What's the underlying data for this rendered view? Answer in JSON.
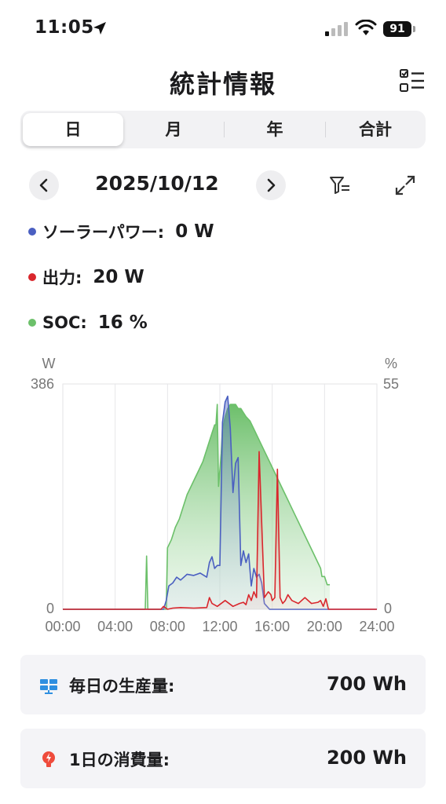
{
  "status_bar": {
    "time": "11:05",
    "battery": "91"
  },
  "header": {
    "title": "統計情報"
  },
  "tabs": [
    {
      "label": "日",
      "active": true
    },
    {
      "label": "月",
      "active": false
    },
    {
      "label": "年",
      "active": false
    },
    {
      "label": "合計",
      "active": false
    }
  ],
  "date_nav": {
    "date": "2025/10/12"
  },
  "legend": [
    {
      "label": "ソーラーパワー:",
      "value": "0 W",
      "color": "#4a5fc1"
    },
    {
      "label": "出力:",
      "value": "20 W",
      "color": "#d9262c"
    },
    {
      "label": "SOC:",
      "value": "16 %",
      "color": "#6cc06a"
    }
  ],
  "chart_data": {
    "type": "area",
    "left_axis_unit": "W",
    "right_axis_unit": "%",
    "left_ylim": [
      0,
      386
    ],
    "right_ylim": [
      0,
      55
    ],
    "left_tick_labels": [
      "386",
      "0"
    ],
    "right_tick_labels": [
      "55",
      "0"
    ],
    "x_tick_labels": [
      "00:00",
      "04:00",
      "08:00",
      "12:00",
      "16:00",
      "20:00",
      "24:00"
    ],
    "xlim_hours": [
      0,
      24
    ],
    "colors": {
      "solar": "#4a5fc1",
      "output": "#d9262c",
      "soc": "#6cc06a"
    },
    "series": [
      {
        "axis": "right",
        "x": [
          0,
          6.2,
          6.3,
          6.4,
          6.5,
          6.6,
          6.7,
          6.8,
          6.9,
          7.0,
          7.1,
          7.2,
          7.3,
          7.4,
          7.5,
          7.6,
          7.7,
          7.8,
          7.9,
          8.0,
          8.3,
          8.6,
          8.9,
          9.2,
          9.5,
          9.8,
          10.1,
          10.4,
          10.7,
          11.0,
          11.3,
          11.6,
          11.7,
          11.8,
          11.9,
          12.0,
          12.1,
          12.2,
          12.4,
          12.6,
          12.8,
          13.0,
          13.2,
          13.4,
          13.6,
          13.8,
          14.0,
          14.3,
          14.6,
          14.9,
          15.2,
          15.5,
          15.8,
          16.1,
          16.4,
          16.7,
          17.0,
          17.3,
          17.6,
          17.9,
          18.2,
          18.5,
          18.8,
          19.1,
          19.4,
          19.7,
          19.8,
          20.0,
          20.1,
          20.2,
          20.3,
          20.4
        ],
        "values": [
          0,
          0,
          0,
          13,
          0,
          0,
          0,
          0,
          0,
          0,
          0,
          0,
          0,
          0,
          0,
          0,
          0,
          0,
          0,
          15,
          17,
          20,
          22,
          25,
          28,
          30,
          32,
          34,
          36,
          39,
          42,
          45,
          45,
          50,
          30,
          34,
          38,
          44,
          47,
          49,
          50,
          50,
          50,
          49,
          49,
          48,
          47,
          46,
          44,
          42,
          40,
          38,
          36,
          34,
          32,
          30,
          28,
          26,
          24,
          22,
          20,
          18,
          16,
          14,
          12,
          10,
          8,
          8,
          7,
          6,
          6,
          6
        ]
      },
      {
        "axis": "left",
        "x": [
          0,
          7.0,
          7.7,
          7.9,
          8.1,
          8.4,
          8.7,
          9.0,
          9.5,
          10.0,
          10.5,
          11.0,
          11.2,
          11.4,
          11.6,
          11.8,
          12.0,
          12.2,
          12.4,
          12.6,
          12.8,
          13.0,
          13.2,
          13.4,
          13.6,
          13.8,
          14.0,
          14.2,
          14.4,
          14.6,
          14.8,
          15.0,
          15.2,
          15.4,
          15.6,
          15.8,
          16.0,
          24
        ],
        "values": [
          0,
          0,
          0,
          15,
          40,
          45,
          55,
          50,
          60,
          58,
          62,
          55,
          80,
          90,
          70,
          75,
          75,
          320,
          355,
          365,
          310,
          200,
          250,
          260,
          75,
          100,
          80,
          95,
          40,
          70,
          55,
          60,
          45,
          10,
          5,
          0,
          0,
          0
        ]
      },
      {
        "axis": "left",
        "x": [
          0,
          7.5,
          7.7,
          8.0,
          8.4,
          9.0,
          10.0,
          11.0,
          11.2,
          11.4,
          11.8,
          12.4,
          13.0,
          13.5,
          13.8,
          14.0,
          14.2,
          14.4,
          14.6,
          14.8,
          15.0,
          15.4,
          15.7,
          15.9,
          16.0,
          16.2,
          16.4,
          16.6,
          16.8,
          17.0,
          17.2,
          17.5,
          18.0,
          18.5,
          19.0,
          19.5,
          19.7,
          19.9,
          20.1,
          20.3,
          20.5,
          24
        ],
        "values": [
          0,
          0,
          5,
          0,
          2,
          3,
          2,
          3,
          20,
          10,
          5,
          15,
          5,
          10,
          12,
          8,
          25,
          15,
          30,
          20,
          270,
          20,
          30,
          25,
          15,
          20,
          240,
          20,
          10,
          15,
          25,
          15,
          10,
          20,
          10,
          12,
          15,
          5,
          18,
          0,
          0,
          0
        ]
      }
    ]
  },
  "cards": [
    {
      "label": "毎日の生産量:",
      "value": "700 Wh"
    },
    {
      "label": "1日の消費量:",
      "value": "200 Wh"
    }
  ]
}
